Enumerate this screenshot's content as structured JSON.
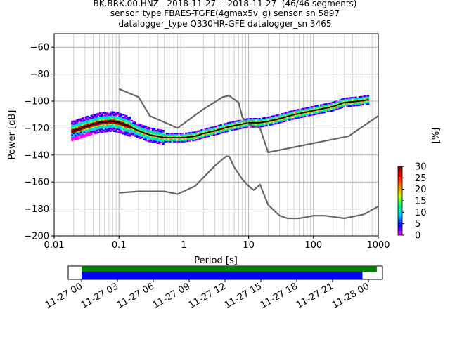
{
  "title_lines": [
    "BK.BRK.00.HNZ   2018-11-27 -- 2018-11-27  (46/46 segments)",
    "sensor_type FBAES-TGFE(4gmax5v_g) sensor_sn 5897",
    "datalogger_type Q330HR-GFE datalogger_sn 3465"
  ],
  "colorbar": {
    "label": "[%]",
    "ticks": [
      "0",
      "5",
      "10",
      "15",
      "20",
      "25",
      "30"
    ],
    "colors": [
      "#ff00ff",
      "#0000ff",
      "#00c8ff",
      "#00ff80",
      "#c8ff00",
      "#ff8000",
      "#ff0000",
      "#800000"
    ]
  },
  "chart_data": [
    {
      "type": "heatmap",
      "xlabel": "Period [s]",
      "ylabel": "Power [dB]",
      "xscale": "log",
      "xlim": [
        0.01,
        1000
      ],
      "ylim": [
        -200,
        -50
      ],
      "grid": true,
      "xticks": [
        "0.01",
        "0.1",
        "1",
        "10",
        "100",
        "1000"
      ],
      "yticks": [
        "−60",
        "−80",
        "−100",
        "−120",
        "−140",
        "−160",
        "−180",
        "−200"
      ],
      "series": [
        {
          "x": [
            0.02,
            0.03,
            0.05,
            0.08,
            0.1,
            0.15,
            0.2,
            0.3,
            0.5,
            0.8,
            1,
            1.5,
            2,
            3,
            5,
            8,
            10,
            15,
            20,
            30,
            50,
            80,
            100,
            200,
            300,
            500,
            700
          ],
          "y": [
            -122,
            -119,
            -116,
            -115,
            -116,
            -119,
            -122,
            -125,
            -127,
            -127,
            -127,
            -126,
            -124,
            -122,
            -119,
            -117,
            -116,
            -116,
            -115,
            -113,
            -110,
            -108,
            -107,
            -104,
            -101,
            -100,
            -99
          ]
        },
        {
          "x": [
            0.1,
            0.2,
            0.3,
            0.8,
            2,
            4,
            5,
            7,
            8,
            10,
            15,
            20,
            350,
            1000
          ],
          "y": [
            -91,
            -97,
            -111,
            -120,
            -106,
            -97,
            -96,
            -101,
            -112,
            -117,
            -120,
            -138,
            -126,
            -111
          ]
        },
        {
          "x": [
            0.1,
            0.2,
            0.5,
            0.8,
            1.5,
            3,
            4.5,
            5,
            6,
            8,
            10,
            12,
            15,
            20,
            30,
            40,
            60,
            80,
            100,
            150,
            300,
            600,
            1000
          ],
          "y": [
            -168,
            -167,
            -167,
            -169,
            -163,
            -148,
            -141,
            -141,
            -149,
            -158,
            -163,
            -166,
            -162,
            -177,
            -185,
            -187,
            -187,
            -186,
            -185,
            -185,
            -187,
            -184,
            -178
          ]
        }
      ]
    },
    {
      "type": "bar",
      "xticks": [
        "11-27 00",
        "11-27 03",
        "11-27 06",
        "11-27 09",
        "11-27 12",
        "11-27 15",
        "11-27 18",
        "11-27 21",
        "11-28 00"
      ],
      "series": [
        {
          "color": "#008000",
          "start": "2018-11-27 00:00",
          "end": "2018-11-28 00:42"
        },
        {
          "color": "#0000ff",
          "start": "2018-11-27 00:00",
          "end": "2018-11-27 23:30"
        }
      ]
    }
  ]
}
